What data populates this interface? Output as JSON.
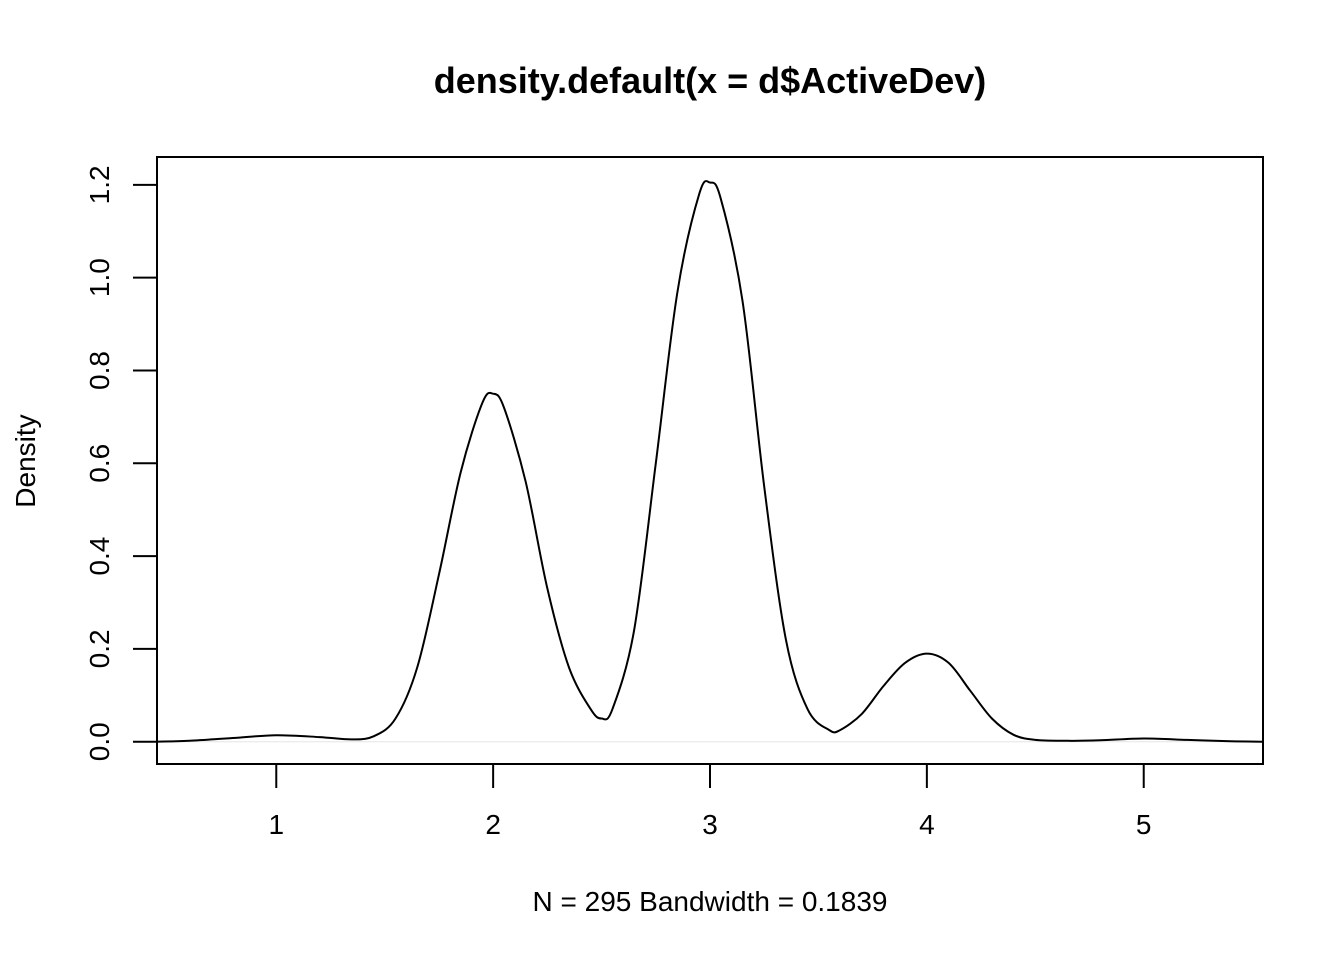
{
  "chart_data": {
    "type": "line",
    "title": "density.default(x = d$ActiveDev)",
    "xlabel": "N = 295   Bandwidth = 0.1839",
    "ylabel": "Density",
    "xlim": [
      0.45,
      5.55
    ],
    "ylim": [
      -0.048,
      1.26
    ],
    "x_ticks": [
      1,
      2,
      3,
      4,
      5
    ],
    "x_tick_labels": [
      "1",
      "2",
      "3",
      "4",
      "5"
    ],
    "y_ticks": [
      0.0,
      0.2,
      0.4,
      0.6,
      0.8,
      1.0,
      1.2
    ],
    "y_tick_labels": [
      "0.0",
      "0.2",
      "0.4",
      "0.6",
      "0.8",
      "1.0",
      "1.2"
    ],
    "grid": false,
    "colors": {
      "line": "#000000",
      "zero_line": "#e6e6e6"
    },
    "series": [
      {
        "x": [
          0.45,
          0.6,
          0.8,
          1.0,
          1.2,
          1.35,
          1.45,
          1.55,
          1.65,
          1.75,
          1.85,
          1.95,
          2.0,
          2.05,
          2.15,
          2.25,
          2.35,
          2.45,
          2.5,
          2.55,
          2.65,
          2.75,
          2.85,
          2.95,
          3.0,
          3.05,
          3.15,
          3.25,
          3.35,
          3.45,
          3.55,
          3.6,
          3.7,
          3.8,
          3.9,
          4.0,
          4.1,
          4.2,
          4.3,
          4.4,
          4.5,
          4.65,
          4.8,
          5.0,
          5.2,
          5.4,
          5.55
        ],
        "y": [
          0.0,
          0.002,
          0.008,
          0.014,
          0.01,
          0.005,
          0.012,
          0.05,
          0.16,
          0.36,
          0.58,
          0.73,
          0.75,
          0.72,
          0.56,
          0.33,
          0.16,
          0.07,
          0.05,
          0.07,
          0.24,
          0.6,
          0.97,
          1.18,
          1.205,
          1.17,
          0.95,
          0.55,
          0.22,
          0.07,
          0.025,
          0.025,
          0.06,
          0.12,
          0.17,
          0.19,
          0.17,
          0.11,
          0.05,
          0.015,
          0.004,
          0.002,
          0.003,
          0.007,
          0.004,
          0.001,
          0.0
        ]
      }
    ]
  }
}
